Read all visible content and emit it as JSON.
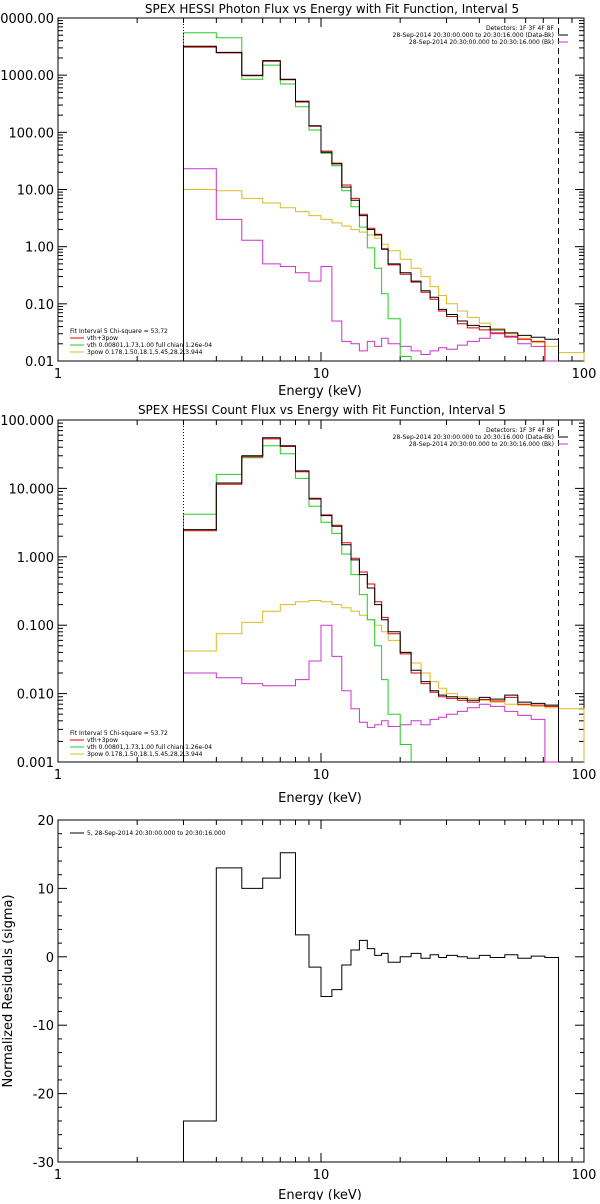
{
  "chart_data": [
    {
      "type": "line",
      "title": "SPEX HESSI Photon Flux vs Energy with Fit Function, Interval 5",
      "xlabel": "Energy (keV)",
      "ylabel": "",
      "x_scale": "log",
      "y_scale": "log",
      "xlim": [
        1,
        100
      ],
      "ylim": [
        0.01,
        10000
      ],
      "x_ticks": [
        "1",
        "10",
        "100"
      ],
      "y_ticks": [
        "0.01",
        "0.10",
        "1.00",
        "10.00",
        "100.00",
        "1000.00",
        "0000.00"
      ],
      "legend_top": {
        "placement": "top-right",
        "header": "Detectors: 1F 3F 4F 8F",
        "entries": [
          {
            "label": "28-Sep-2014 20:30:00.000 to 20:30:16.000 (Data-Bk)",
            "color": "#000000"
          },
          {
            "label": "28-Sep-2014 20:30:00.000 to 20:30:16.000 (Bk)",
            "color": "#cc33cc"
          }
        ]
      },
      "legend_bottom": {
        "placement": "bottom-left",
        "header": "Fit Interval 5   Chi-square = 53.72",
        "entries": [
          {
            "label": "vth+3pow",
            "color": "#dd0000"
          },
          {
            "label": "vth 0.00801,1.73,1.00  full chian 1.26e-04",
            "color": "#22cc22"
          },
          {
            "label": "3pow 0.178,1.50,18.1,5.45,28.2,3.944",
            "color": "#ddbb22"
          }
        ]
      },
      "annotations": {
        "dotted_vline_x": 3,
        "dashed_vline_x": 80
      },
      "edges": [
        3,
        4,
        5,
        6,
        7,
        8,
        9,
        10,
        11,
        12,
        13,
        14,
        15,
        16,
        17,
        18,
        20,
        22,
        24,
        26,
        28,
        30,
        33,
        36,
        40,
        44,
        50,
        56,
        63,
        71,
        80,
        100
      ],
      "series": [
        {
          "color": "#000000",
          "values": [
            3200,
            2500,
            1000,
            1800,
            850,
            350,
            130,
            45,
            28,
            11,
            6.5,
            3.5,
            2.0,
            1.6,
            0.9,
            0.5,
            0.35,
            0.25,
            0.17,
            0.13,
            0.08,
            0.065,
            0.05,
            0.042,
            0.04,
            0.035,
            0.031,
            0.028,
            0.026,
            0.024
          ]
        },
        {
          "color": "#dd0000",
          "values": [
            3100,
            2450,
            980,
            1750,
            830,
            340,
            128,
            47,
            29,
            12,
            7.0,
            3.7,
            2.1,
            1.65,
            0.92,
            0.48,
            0.33,
            0.24,
            0.16,
            0.12,
            0.075,
            0.06,
            0.045,
            0.038,
            0.035,
            0.031,
            0.027,
            0.024,
            0.022
          ]
        },
        {
          "color": "#22cc22",
          "values": [
            5500,
            4500,
            850,
            1500,
            700,
            280,
            110,
            43,
            26,
            9.5,
            5.0,
            2.2,
            0.95,
            0.42,
            0.15,
            0.055,
            0.012
          ]
        },
        {
          "color": "#ddbb22",
          "values": [
            10,
            9.5,
            7.0,
            5.8,
            4.8,
            4.1,
            3.5,
            3.0,
            2.6,
            2.3,
            2.0,
            1.8,
            1.6,
            1.4,
            1.1,
            0.85,
            0.6,
            0.42,
            0.3,
            0.2,
            0.14,
            0.1,
            0.075,
            0.058,
            0.046,
            0.037,
            0.03,
            0.025,
            0.021,
            0.018,
            0.014
          ]
        },
        {
          "color": "#cc33cc",
          "values": [
            23,
            3.0,
            1.3,
            0.5,
            0.45,
            0.35,
            0.25,
            0.45,
            0.05,
            0.022,
            0.02,
            0.015,
            0.022,
            0.018,
            0.025,
            0.02,
            0.018,
            0.015,
            0.013,
            0.015,
            0.017,
            0.016,
            0.019,
            0.022,
            0.025,
            0.03,
            0.026,
            0.02,
            0.018,
            0.01
          ]
        }
      ]
    },
    {
      "type": "line",
      "title": "SPEX HESSI Count Flux vs Energy with Fit Function, Interval 5",
      "xlabel": "Energy (keV)",
      "ylabel": "",
      "x_scale": "log",
      "y_scale": "log",
      "xlim": [
        1,
        100
      ],
      "ylim": [
        0.001,
        100
      ],
      "x_ticks": [
        "1",
        "10",
        "100"
      ],
      "y_ticks": [
        "0.001",
        "0.010",
        "0.100",
        "1.000",
        "10.000",
        "100.000"
      ],
      "legend_top": {
        "placement": "top-right",
        "header": "Detectors: 1F 3F 4F 8F",
        "entries": [
          {
            "label": "28-Sep-2014 20:30:00.000 to 20:30:16.000 (Data-Bk)",
            "color": "#000000"
          },
          {
            "label": "28-Sep-2014 20:30:00.000 to 20:30:16.000 (Bk)",
            "color": "#cc33cc"
          }
        ]
      },
      "legend_bottom": {
        "placement": "bottom-left",
        "header": "Fit Interval 5   Chi-square = 53.72",
        "entries": [
          {
            "label": "vth+3pow",
            "color": "#dd0000"
          },
          {
            "label": "vth 0.00801,1.73,1.00  full chian 1.26e-04",
            "color": "#22cc22"
          },
          {
            "label": "3pow 0.178,1.50,18.1,5.45,28.2,3.944",
            "color": "#ddbb22"
          }
        ]
      },
      "annotations": {
        "dotted_vline_x": 3,
        "dashed_vline_x": 80
      },
      "edges": [
        3,
        4,
        5,
        6,
        7,
        8,
        9,
        10,
        11,
        12,
        13,
        14,
        15,
        16,
        17,
        18,
        20,
        22,
        24,
        26,
        28,
        30,
        33,
        36,
        40,
        44,
        50,
        56,
        63,
        71,
        80,
        100
      ],
      "series": [
        {
          "color": "#000000",
          "values": [
            2.5,
            12,
            30,
            55,
            42,
            18,
            7.0,
            4.0,
            2.8,
            1.5,
            0.9,
            0.55,
            0.35,
            0.2,
            0.12,
            0.08,
            0.04,
            0.022,
            0.015,
            0.011,
            0.0095,
            0.009,
            0.0085,
            0.008,
            0.0088,
            0.0083,
            0.0095,
            0.0075,
            0.0072,
            0.0068
          ]
        },
        {
          "color": "#dd0000",
          "values": [
            2.4,
            11.5,
            29,
            53,
            41,
            17.5,
            7.2,
            4.1,
            2.9,
            1.6,
            0.95,
            0.6,
            0.4,
            0.22,
            0.13,
            0.075,
            0.038,
            0.02,
            0.014,
            0.0105,
            0.009,
            0.0085,
            0.008,
            0.0075,
            0.0082,
            0.0078,
            0.0088,
            0.007,
            0.0068,
            0.0065
          ]
        },
        {
          "color": "#22cc22",
          "values": [
            4.2,
            16,
            28,
            42,
            32,
            14,
            5.5,
            3.2,
            2.2,
            1.1,
            0.55,
            0.28,
            0.12,
            0.05,
            0.016,
            0.005,
            0.0018
          ]
        },
        {
          "color": "#ddbb22",
          "values": [
            0.042,
            0.075,
            0.11,
            0.16,
            0.2,
            0.22,
            0.23,
            0.22,
            0.2,
            0.18,
            0.16,
            0.14,
            0.12,
            0.1,
            0.08,
            0.06,
            0.04,
            0.028,
            0.02,
            0.015,
            0.012,
            0.01,
            0.009,
            0.0085,
            0.008,
            0.0075,
            0.007,
            0.0068,
            0.0065,
            0.0062,
            0.006
          ]
        },
        {
          "color": "#cc33cc",
          "values": [
            0.02,
            0.017,
            0.014,
            0.013,
            0.013,
            0.016,
            0.03,
            0.1,
            0.035,
            0.011,
            0.006,
            0.0038,
            0.0032,
            0.0035,
            0.004,
            0.0033,
            0.0035,
            0.004,
            0.0035,
            0.0042,
            0.0045,
            0.005,
            0.0055,
            0.0062,
            0.007,
            0.0065,
            0.0055,
            0.0048,
            0.0042,
            0.001
          ]
        }
      ]
    },
    {
      "type": "line",
      "title": "",
      "xlabel": "Energy (keV)",
      "ylabel": "Normalized Residuals (sigma)",
      "x_scale": "log",
      "y_scale": "linear",
      "xlim": [
        1,
        100
      ],
      "ylim": [
        -30,
        20
      ],
      "x_ticks": [
        "1",
        "10",
        "100"
      ],
      "y_ticks": [
        "-30",
        "-20",
        "-10",
        "0",
        "10",
        "20"
      ],
      "legend_top": {
        "placement": "top-left",
        "header": "",
        "entries": [
          {
            "label": "5, 28-Sep-2014 20:30:00.000 to 20:30:16.000",
            "color": "#000000"
          }
        ]
      },
      "edges": [
        3,
        4,
        5,
        6,
        7,
        8,
        9,
        10,
        11,
        12,
        13,
        14,
        15,
        16,
        17,
        18,
        20,
        22,
        24,
        26,
        28,
        30,
        33,
        36,
        40,
        44,
        50,
        56,
        63,
        71,
        80
      ],
      "series": [
        {
          "color": "#000000",
          "values": [
            -24,
            13,
            10,
            11.5,
            15.2,
            3.2,
            -1.5,
            -5.8,
            -4.8,
            -1.2,
            1.0,
            2.4,
            1.2,
            0.2,
            0.5,
            -0.8,
            0.0,
            0.5,
            -0.2,
            0.3,
            -0.1,
            0.2,
            0.0,
            -0.2,
            0.2,
            -0.1,
            0.3,
            -0.2,
            0.1,
            -0.1
          ]
        }
      ]
    }
  ]
}
